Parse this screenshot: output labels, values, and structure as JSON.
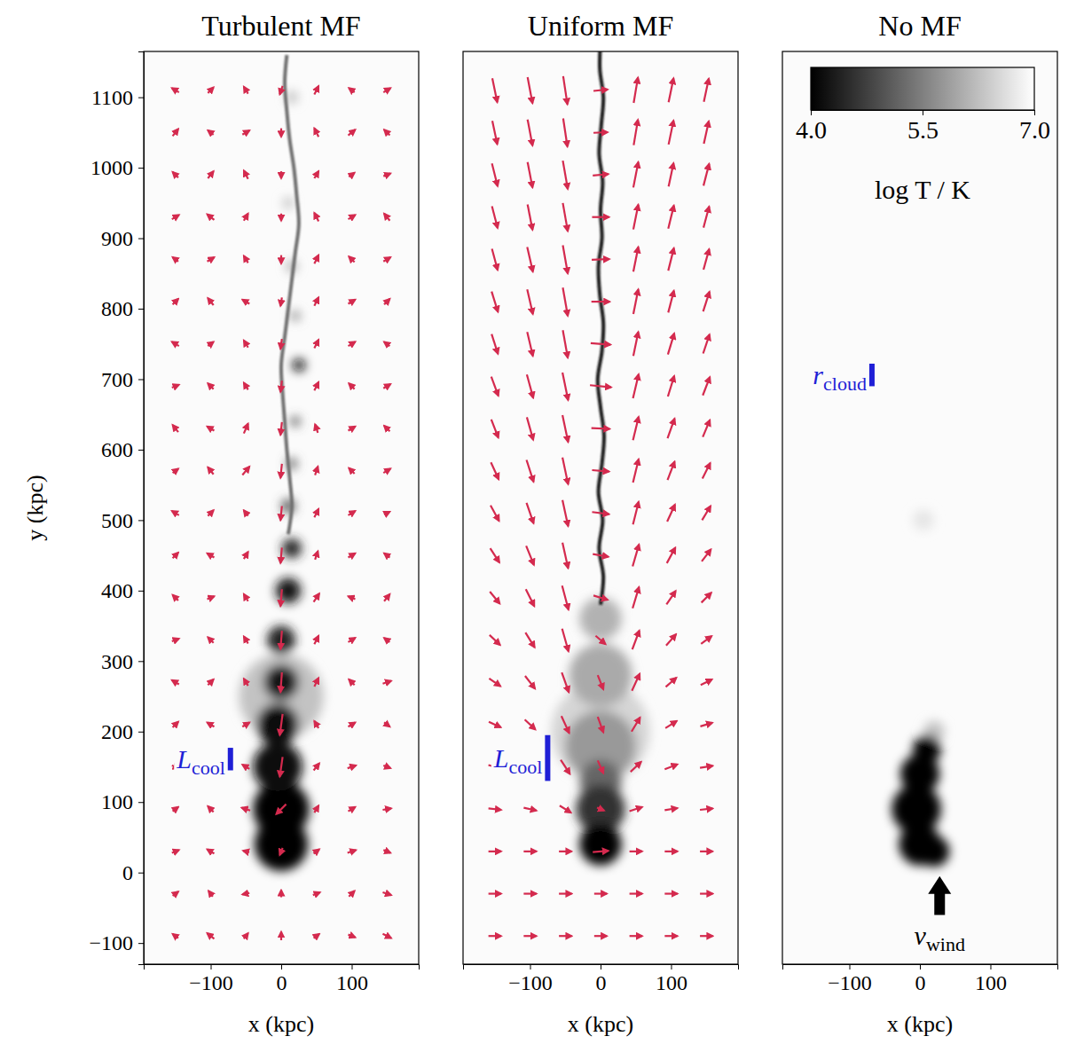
{
  "chart_data": [
    {
      "type": "field",
      "title": "Turbulent MF",
      "xlabel": "x (kpc)",
      "ylabel": "y (kpc)",
      "xlim": [
        -195,
        195
      ],
      "ylim": [
        -130,
        1165
      ],
      "xticks": [
        {
          "value": -100,
          "label": "−100"
        },
        0,
        100
      ],
      "yticks": [
        {
          "value": -100,
          "label": "−100"
        },
        0,
        100,
        200,
        300,
        400,
        500,
        600,
        700,
        800,
        900,
        1000,
        1100
      ],
      "color": "#d42a4e",
      "ambient_logT": 6.95,
      "field": {
        "x": [
          -150,
          -100,
          -50,
          0,
          50,
          100,
          150
        ],
        "y": [
          -90,
          -30,
          30,
          90,
          150,
          210,
          270,
          330,
          390,
          450,
          510,
          570,
          630,
          690,
          750,
          810,
          870,
          930,
          990,
          1050,
          1110
        ],
        "bx": [
          [
            -8,
            -10,
            6,
            0,
            8,
            10,
            12
          ],
          [
            8,
            -6,
            -10,
            0,
            10,
            8,
            12
          ],
          [
            10,
            -10,
            -8,
            -4,
            8,
            12,
            10
          ],
          [
            8,
            -8,
            -12,
            -14,
            6,
            10,
            12
          ],
          [
            10,
            -6,
            -10,
            -4,
            8,
            12,
            10
          ],
          [
            8,
            -10,
            10,
            -4,
            -6,
            10,
            8
          ],
          [
            -10,
            8,
            -6,
            -2,
            6,
            -8,
            12
          ],
          [
            10,
            -8,
            -6,
            -2,
            6,
            10,
            -8
          ],
          [
            -8,
            10,
            -6,
            -2,
            8,
            -10,
            8
          ],
          [
            8,
            -10,
            6,
            -2,
            4,
            10,
            -8
          ],
          [
            -10,
            8,
            -6,
            -2,
            6,
            10,
            8
          ],
          [
            8,
            -8,
            10,
            -2,
            4,
            -8,
            10
          ],
          [
            -8,
            -10,
            6,
            -2,
            -4,
            10,
            -8
          ],
          [
            10,
            -8,
            -6,
            -2,
            6,
            -8,
            10
          ],
          [
            -10,
            8,
            -6,
            -2,
            6,
            10,
            -8
          ],
          [
            8,
            -8,
            -10,
            -2,
            6,
            10,
            8
          ],
          [
            -8,
            10,
            -6,
            0,
            6,
            -8,
            10
          ],
          [
            10,
            -10,
            6,
            0,
            -6,
            10,
            -8
          ],
          [
            -8,
            8,
            -6,
            0,
            6,
            8,
            10
          ],
          [
            8,
            -8,
            10,
            0,
            -6,
            10,
            -8
          ],
          [
            -10,
            8,
            -6,
            -4,
            6,
            -8,
            10
          ]
        ],
        "by": [
          [
            6,
            8,
            8,
            12,
            6,
            -4,
            -6
          ],
          [
            6,
            8,
            -2,
            10,
            4,
            8,
            -4
          ],
          [
            4,
            6,
            2,
            -10,
            6,
            4,
            -4
          ],
          [
            6,
            8,
            4,
            -14,
            10,
            6,
            2
          ],
          [
            -4,
            10,
            6,
            -28,
            10,
            4,
            -4
          ],
          [
            8,
            6,
            6,
            -30,
            10,
            6,
            -6
          ],
          [
            6,
            8,
            10,
            -28,
            12,
            8,
            4
          ],
          [
            4,
            8,
            10,
            -26,
            12,
            6,
            6
          ],
          [
            8,
            4,
            10,
            -24,
            12,
            4,
            10
          ],
          [
            8,
            6,
            10,
            -22,
            12,
            6,
            6
          ],
          [
            6,
            8,
            8,
            -20,
            12,
            6,
            4
          ],
          [
            6,
            10,
            12,
            -20,
            12,
            8,
            6
          ],
          [
            10,
            6,
            14,
            -18,
            12,
            6,
            8
          ],
          [
            4,
            8,
            10,
            -16,
            12,
            8,
            6
          ],
          [
            6,
            6,
            10,
            -14,
            12,
            6,
            6
          ],
          [
            8,
            10,
            6,
            -12,
            12,
            6,
            8
          ],
          [
            6,
            6,
            10,
            -12,
            12,
            8,
            6
          ],
          [
            6,
            8,
            10,
            -10,
            12,
            6,
            10
          ],
          [
            8,
            10,
            12,
            -10,
            10,
            6,
            4
          ],
          [
            10,
            6,
            6,
            -12,
            12,
            8,
            8
          ],
          [
            6,
            8,
            10,
            -12,
            12,
            6,
            6
          ]
        ]
      },
      "cloud": {
        "x": [
          0,
          0,
          0,
          -5,
          -5,
          0,
          0,
          10,
          15,
          10,
          15,
          20,
          25,
          20,
          15,
          10,
          15
        ],
        "y": [
          250,
          40,
          90,
          150,
          210,
          270,
          330,
          400,
          460,
          520,
          580,
          640,
          720,
          790,
          860,
          950,
          1100
        ],
        "r": [
          60,
          38,
          40,
          35,
          30,
          25,
          20,
          18,
          14,
          10,
          8,
          7,
          9,
          7,
          8,
          8,
          9
        ],
        "logT": [
          6.3,
          4.0,
          4.0,
          4.1,
          4.2,
          4.3,
          4.4,
          4.3,
          4.5,
          5.0,
          5.2,
          5.0,
          4.2,
          5.6,
          6.0,
          6.3,
          6.3
        ]
      },
      "filament": {
        "x": [
          10,
          15,
          12,
          8,
          5,
          2,
          0,
          5,
          10,
          15,
          20,
          25,
          22,
          18,
          12,
          8,
          5,
          8
        ],
        "y": [
          480,
          520,
          560,
          600,
          640,
          680,
          720,
          760,
          800,
          840,
          880,
          920,
          960,
          1000,
          1040,
          1080,
          1120,
          1160
        ],
        "logT": 5.3
      },
      "annotations": [
        {
          "text": "L",
          "subscript": "cool",
          "x": -72,
          "y": 145,
          "length": 32,
          "marker": "bar",
          "color": "#1f1fd6"
        }
      ]
    },
    {
      "type": "field",
      "title": "Uniform MF",
      "xlabel": "x (kpc)",
      "tick_labels": "x",
      "xlim": [
        -195,
        195
      ],
      "ylim": [
        -130,
        1165
      ],
      "xticks": [
        {
          "value": -100,
          "label": "−100"
        },
        0,
        100
      ],
      "color": "#d42a4e",
      "ambient_logT": 6.95,
      "field": {
        "x": [
          -150,
          -100,
          -50,
          0,
          50,
          100,
          150
        ],
        "y": [
          -90,
          -30,
          30,
          90,
          150,
          210,
          270,
          330,
          390,
          450,
          510,
          570,
          630,
          690,
          750,
          810,
          870,
          930,
          990,
          1050,
          1110
        ],
        "bx": [
          [
            18,
            18,
            18,
            18,
            18,
            18,
            18
          ],
          [
            18,
            18,
            18,
            18,
            18,
            18,
            18
          ],
          [
            18,
            18,
            18,
            22,
            18,
            18,
            18
          ],
          [
            18,
            18,
            16,
            10,
            18,
            18,
            18
          ],
          [
            18,
            17,
            13,
            8,
            15,
            18,
            18
          ],
          [
            17,
            15,
            11,
            8,
            12,
            16,
            17
          ],
          [
            16,
            14,
            10,
            8,
            11,
            15,
            16
          ],
          [
            15,
            13,
            9,
            14,
            10,
            14,
            15
          ],
          [
            14,
            12,
            9,
            20,
            9,
            13,
            14
          ],
          [
            13,
            11,
            8,
            22,
            9,
            12,
            13
          ],
          [
            12,
            10,
            8,
            24,
            8,
            11,
            12
          ],
          [
            11,
            10,
            8,
            24,
            8,
            10,
            11
          ],
          [
            10,
            9,
            8,
            26,
            8,
            10,
            10
          ],
          [
            10,
            9,
            8,
            30,
            8,
            9,
            10
          ],
          [
            9,
            8,
            7,
            28,
            7,
            9,
            9
          ],
          [
            9,
            8,
            7,
            26,
            7,
            8,
            9
          ],
          [
            8,
            8,
            7,
            25,
            7,
            8,
            8
          ],
          [
            8,
            7,
            7,
            24,
            7,
            8,
            8
          ],
          [
            8,
            7,
            7,
            22,
            7,
            7,
            8
          ],
          [
            7,
            7,
            6,
            20,
            6,
            7,
            7
          ],
          [
            7,
            7,
            6,
            20,
            6,
            7,
            7
          ]
        ],
        "by": [
          [
            0,
            0,
            0,
            0,
            0,
            0,
            0
          ],
          [
            0,
            0,
            0,
            0,
            0,
            0,
            0
          ],
          [
            0,
            0,
            0,
            2,
            0,
            0,
            0
          ],
          [
            -2,
            -4,
            -10,
            -4,
            6,
            3,
            2
          ],
          [
            -5,
            -10,
            -20,
            -18,
            14,
            7,
            3
          ],
          [
            -8,
            -14,
            -24,
            -22,
            20,
            10,
            5
          ],
          [
            -11,
            -18,
            -28,
            -20,
            24,
            13,
            8
          ],
          [
            -14,
            -21,
            -32,
            -12,
            27,
            16,
            11
          ],
          [
            -17,
            -24,
            -34,
            -6,
            30,
            19,
            14
          ],
          [
            -20,
            -27,
            -36,
            -4,
            31,
            22,
            17
          ],
          [
            -22,
            -29,
            -37,
            -3,
            32,
            24,
            20
          ],
          [
            -24,
            -31,
            -38,
            -2,
            33,
            26,
            22
          ],
          [
            -26,
            -32,
            -38,
            -1,
            33,
            28,
            24
          ],
          [
            -27,
            -33,
            -39,
            -3,
            34,
            29,
            26
          ],
          [
            -28,
            -34,
            -39,
            -2,
            34,
            30,
            27
          ],
          [
            -29,
            -35,
            -40,
            0,
            35,
            31,
            28
          ],
          [
            -30,
            -35,
            -40,
            1,
            35,
            32,
            29
          ],
          [
            -31,
            -36,
            -40,
            0,
            35,
            33,
            30
          ],
          [
            -32,
            -36,
            -40,
            2,
            36,
            33,
            31
          ],
          [
            -33,
            -37,
            -40,
            1,
            36,
            34,
            32
          ],
          [
            -34,
            -37,
            -40,
            2,
            36,
            34,
            33
          ]
        ]
      },
      "cloud": {
        "x": [
          0,
          0,
          0,
          0,
          0,
          0,
          0
        ],
        "y": [
          200,
          180,
          280,
          360,
          130,
          90,
          40
        ],
        "r": [
          70,
          50,
          45,
          30,
          30,
          35,
          30
        ],
        "logT": [
          6.5,
          5.8,
          6.0,
          6.1,
          5.2,
          4.6,
          4.0
        ]
      },
      "filament": {
        "x": [
          0,
          4,
          -2,
          3,
          -3,
          2,
          5,
          0,
          -4,
          2,
          4,
          -1,
          -3,
          2,
          0,
          3,
          -2,
          1,
          4,
          -1,
          0
        ],
        "y": [
          380,
          420,
          460,
          500,
          540,
          580,
          620,
          660,
          700,
          740,
          780,
          820,
          860,
          900,
          940,
          980,
          1020,
          1060,
          1100,
          1140,
          1180
        ],
        "logT": 4.3
      },
      "annotations": [
        {
          "text": "L",
          "subscript": "cool",
          "x": -75,
          "y": 130,
          "length": 65,
          "marker": "bar",
          "color": "#1f1fd6"
        }
      ]
    },
    {
      "type": "field",
      "title": "No MF",
      "xlabel": "x (kpc)",
      "tick_labels": "x",
      "xlim": [
        -195,
        195
      ],
      "ylim": [
        -130,
        1165
      ],
      "xticks": [
        {
          "value": -100,
          "label": "−100"
        },
        0,
        100
      ],
      "ambient_logT": 6.95,
      "cloud": {
        "x": [
          5,
          20,
          0,
          -5,
          0,
          10,
          20
        ],
        "y": [
          500,
          200,
          40,
          90,
          140,
          175,
          30
        ],
        "r": [
          15,
          15,
          30,
          35,
          28,
          20,
          22
        ],
        "logT": [
          6.7,
          6.3,
          4.0,
          4.0,
          4.0,
          4.0,
          4.0
        ]
      },
      "annotations": [
        {
          "text": "r",
          "subscript": "cloud",
          "x": -68,
          "y": 690,
          "length": 32,
          "marker": "bar",
          "color": "#1f1fd6"
        },
        {
          "text": "v",
          "subscript": "wind",
          "x": 28,
          "y": -60,
          "length": 55,
          "marker": "arrow",
          "color": "#000000"
        }
      ],
      "colorbar": {
        "label": "log T / K",
        "range": [
          4.0,
          7.0
        ],
        "ticks": [
          {
            "value": 4.0,
            "label": "4.0"
          },
          {
            "value": 5.5,
            "label": "5.5"
          },
          {
            "value": 7.0,
            "label": "7.0"
          }
        ]
      }
    }
  ]
}
